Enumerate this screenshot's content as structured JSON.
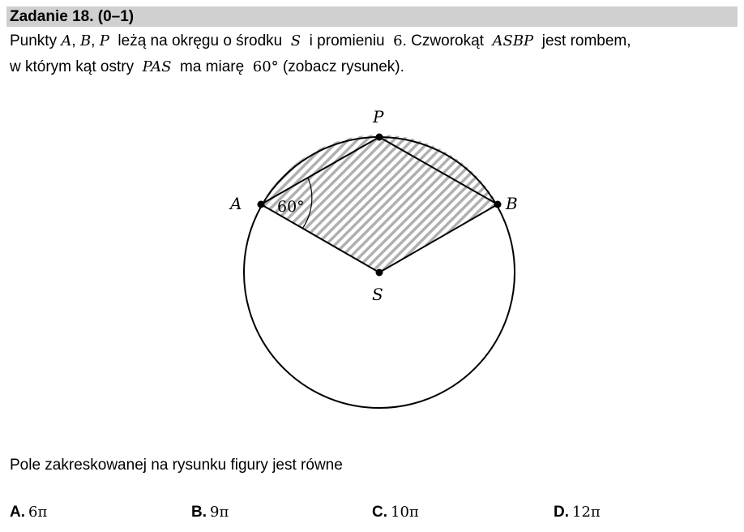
{
  "header": {
    "title": "Zadanie 18. (0–1)"
  },
  "question": {
    "l1": [
      "Punkty ",
      "A",
      ", ",
      "B",
      ", ",
      "P",
      "  leżą na okręgu o środku  ",
      "S",
      "  i promieniu  ",
      "6",
      ". Czworokąt  ",
      "ASBP",
      "  jest rombem,"
    ],
    "l2": [
      "w którym kąt ostry  ",
      "PAS",
      "  ma miarę  ",
      "60°",
      " (zobacz rysunek)."
    ],
    "prompt": "Pole zakreskowanej na rysunku figury jest równe"
  },
  "figure": {
    "points": {
      "A": "A",
      "B": "B",
      "P": "P",
      "S": "S"
    },
    "angle_label": "60°",
    "hatch_color": "#b0b0b0"
  },
  "answers": [
    {
      "letter": "A.",
      "value": "6π"
    },
    {
      "letter": "B.",
      "value": "9π"
    },
    {
      "letter": "C.",
      "value": "10π"
    },
    {
      "letter": "D.",
      "value": "12π"
    }
  ]
}
